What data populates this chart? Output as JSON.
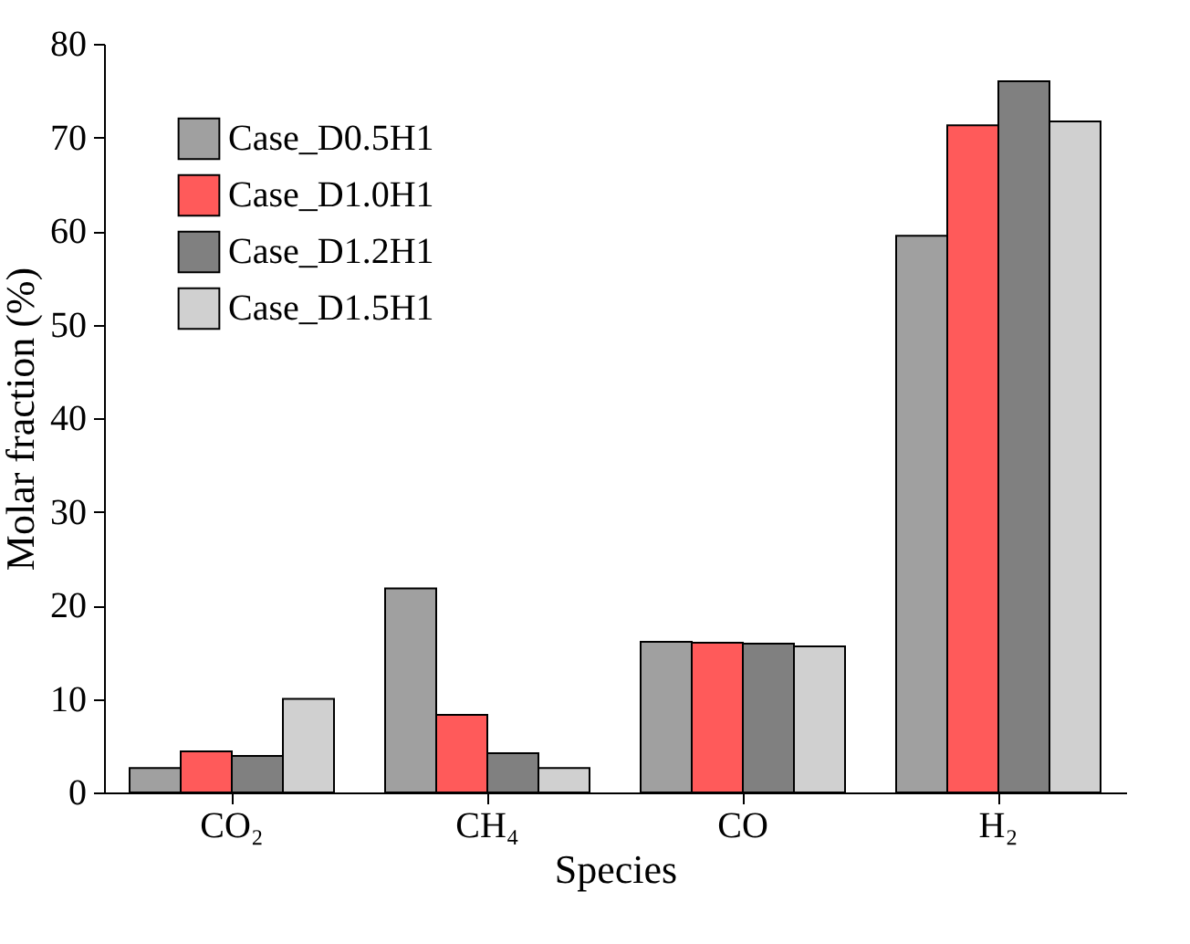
{
  "chart_data": {
    "type": "bar",
    "xlabel": "Species",
    "ylabel": "Molar fraction (%)",
    "categories": [
      "CO₂",
      "CH₄",
      "CO",
      "H₂"
    ],
    "series": [
      {
        "name": "Case_D0.5H1",
        "color": "#a0a0a0",
        "values": [
          2.6,
          21.8,
          16.1,
          59.5
        ]
      },
      {
        "name": "Case_D1.0H1",
        "color": "#ff5a5a",
        "values": [
          4.4,
          8.3,
          16.0,
          71.3
        ]
      },
      {
        "name": "Case_D1.2H1",
        "color": "#808080",
        "values": [
          3.9,
          4.2,
          15.9,
          76.0
        ]
      },
      {
        "name": "Case_D1.5H1",
        "color": "#d0d0d0",
        "values": [
          10.0,
          2.6,
          15.6,
          71.7
        ]
      }
    ],
    "ylim": [
      0,
      80
    ],
    "yticks": [
      0,
      10,
      20,
      30,
      40,
      50,
      60,
      70,
      80
    ],
    "legend": "top left",
    "grid": false
  }
}
